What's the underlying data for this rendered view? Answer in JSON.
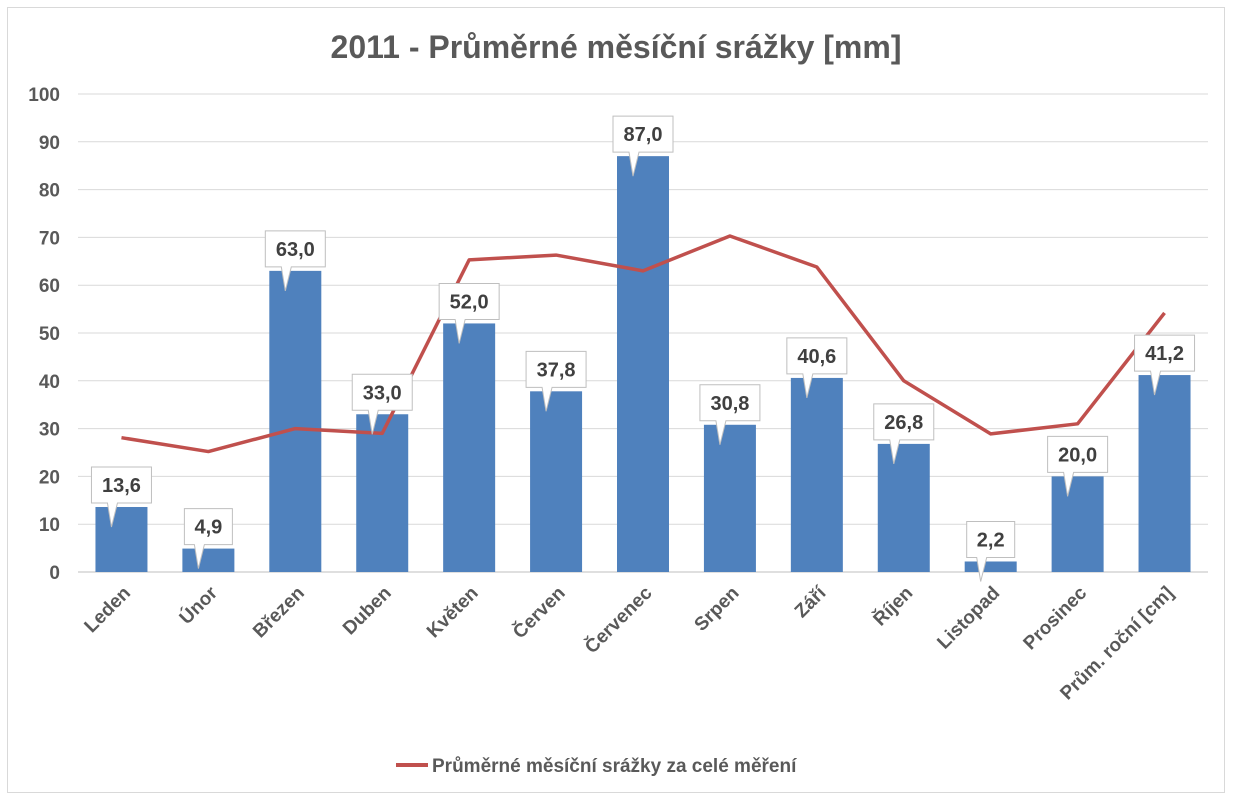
{
  "chart_data": {
    "type": "bar",
    "title": "2011 - Průměrné měsíční srážky [mm]",
    "xlabel": "",
    "ylabel": "",
    "ylim": [
      0,
      100
    ],
    "yticks": [
      0,
      10,
      20,
      30,
      40,
      50,
      60,
      70,
      80,
      90,
      100
    ],
    "grid": true,
    "legend_position": "bottom",
    "categories": [
      "Leden",
      "Únor",
      "Březen",
      "Duben",
      "Květen",
      "Červen",
      "Červenec",
      "Srpen",
      "Září",
      "Říjen",
      "Listopad",
      "Prosinec",
      "Prům. roční [cm]"
    ],
    "series": [
      {
        "name": "2011",
        "type": "bar",
        "color": "#4f81bd",
        "values": [
          13.6,
          4.9,
          63.0,
          33.0,
          52.0,
          37.8,
          87.0,
          30.8,
          40.6,
          26.8,
          2.2,
          20.0,
          41.2
        ],
        "labels": [
          "13,6",
          "4,9",
          "63,0",
          "33,0",
          "52,0",
          "37,8",
          "87,0",
          "30,8",
          "40,6",
          "26,8",
          "2,2",
          "20,0",
          "41,2"
        ]
      },
      {
        "name": "Průměrné měsíční srážky za celé měření",
        "type": "line",
        "color": "#c0504d",
        "values": [
          28.1,
          25.2,
          30.0,
          29.0,
          65.3,
          66.3,
          63.0,
          70.3,
          63.8,
          40.0,
          28.9,
          31.0,
          54.2
        ]
      }
    ]
  }
}
